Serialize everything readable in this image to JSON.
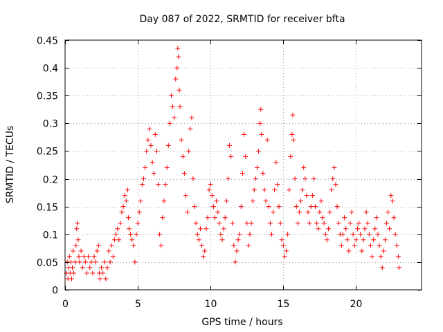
{
  "chart_data": {
    "type": "scatter",
    "title": "Day 087 of 2022, SRMTID for receiver bfta",
    "xlabel": "GPS time / hours",
    "ylabel": "SRMTID / TECUs",
    "xlim": [
      0,
      24.5
    ],
    "ylim": [
      0,
      0.45
    ],
    "xticks": [
      0,
      5,
      10,
      15,
      20
    ],
    "xtick_labels": [
      "0",
      "5",
      "10",
      "15",
      "20"
    ],
    "yticks": [
      0,
      0.05,
      0.1,
      0.15,
      0.2,
      0.25,
      0.3,
      0.35,
      0.4,
      0.45
    ],
    "ytick_labels": [
      "0",
      "0.05",
      "0.1",
      "0.15",
      "0.2",
      "0.25",
      "0.3",
      "0.35",
      "0.4",
      "0.45"
    ],
    "grid": true,
    "marker": "+",
    "color": "#ff0000",
    "series": [
      {
        "name": "SRMTID",
        "points": [
          [
            0.1,
            0.03
          ],
          [
            0.15,
            0.05
          ],
          [
            0.2,
            0.02
          ],
          [
            0.25,
            0.04
          ],
          [
            0.3,
            0.06
          ],
          [
            0.35,
            0.03
          ],
          [
            0.4,
            0.05
          ],
          [
            0.45,
            0.02
          ],
          [
            0.5,
            0.04
          ],
          [
            0.55,
            0.07
          ],
          [
            0.6,
            0.03
          ],
          [
            0.7,
            0.05
          ],
          [
            0.75,
            0.08
          ],
          [
            0.8,
            0.11
          ],
          [
            0.85,
            0.12
          ],
          [
            0.9,
            0.09
          ],
          [
            0.95,
            0.06
          ],
          [
            1.0,
            0.05
          ],
          [
            1.1,
            0.07
          ],
          [
            1.2,
            0.04
          ],
          [
            1.3,
            0.06
          ],
          [
            1.4,
            0.05
          ],
          [
            1.5,
            0.03
          ],
          [
            1.6,
            0.06
          ],
          [
            1.7,
            0.04
          ],
          [
            1.8,
            0.05
          ],
          [
            1.9,
            0.03
          ],
          [
            2.0,
            0.06
          ],
          [
            2.1,
            0.05
          ],
          [
            2.2,
            0.07
          ],
          [
            2.3,
            0.08
          ],
          [
            2.35,
            0.03
          ],
          [
            2.4,
            0.02
          ],
          [
            2.5,
            0.04
          ],
          [
            2.6,
            0.03
          ],
          [
            2.7,
            0.05
          ],
          [
            2.8,
            0.02
          ],
          [
            2.9,
            0.04
          ],
          [
            3.0,
            0.07
          ],
          [
            3.1,
            0.05
          ],
          [
            3.2,
            0.08
          ],
          [
            3.3,
            0.06
          ],
          [
            3.4,
            0.09
          ],
          [
            3.5,
            0.1
          ],
          [
            3.6,
            0.11
          ],
          [
            3.7,
            0.09
          ],
          [
            3.8,
            0.12
          ],
          [
            3.9,
            0.14
          ],
          [
            4.0,
            0.15
          ],
          [
            4.1,
            0.17
          ],
          [
            4.2,
            0.16
          ],
          [
            4.3,
            0.18
          ],
          [
            4.35,
            0.13
          ],
          [
            4.4,
            0.11
          ],
          [
            4.5,
            0.1
          ],
          [
            4.6,
            0.09
          ],
          [
            4.7,
            0.08
          ],
          [
            4.8,
            0.05
          ],
          [
            4.9,
            0.1
          ],
          [
            5.0,
            0.12
          ],
          [
            5.1,
            0.14
          ],
          [
            5.2,
            0.16
          ],
          [
            5.3,
            0.19
          ],
          [
            5.4,
            0.2
          ],
          [
            5.5,
            0.22
          ],
          [
            5.6,
            0.25
          ],
          [
            5.7,
            0.27
          ],
          [
            5.8,
            0.29
          ],
          [
            5.9,
            0.26
          ],
          [
            6.0,
            0.23
          ],
          [
            6.1,
            0.21
          ],
          [
            6.2,
            0.28
          ],
          [
            6.3,
            0.25
          ],
          [
            6.4,
            0.19
          ],
          [
            6.5,
            0.1
          ],
          [
            6.6,
            0.08
          ],
          [
            6.7,
            0.13
          ],
          [
            6.8,
            0.16
          ],
          [
            6.9,
            0.19
          ],
          [
            7.0,
            0.22
          ],
          [
            7.1,
            0.26
          ],
          [
            7.2,
            0.3
          ],
          [
            7.3,
            0.35
          ],
          [
            7.4,
            0.33
          ],
          [
            7.5,
            0.31
          ],
          [
            7.6,
            0.38
          ],
          [
            7.7,
            0.4
          ],
          [
            7.75,
            0.435
          ],
          [
            7.8,
            0.42
          ],
          [
            7.85,
            0.36
          ],
          [
            7.9,
            0.33
          ],
          [
            8.0,
            0.27
          ],
          [
            8.1,
            0.24
          ],
          [
            8.2,
            0.21
          ],
          [
            8.3,
            0.17
          ],
          [
            8.4,
            0.14
          ],
          [
            8.5,
            0.25
          ],
          [
            8.6,
            0.29
          ],
          [
            8.7,
            0.31
          ],
          [
            8.8,
            0.2
          ],
          [
            8.9,
            0.15
          ],
          [
            9.0,
            0.12
          ],
          [
            9.1,
            0.1
          ],
          [
            9.2,
            0.09
          ],
          [
            9.3,
            0.11
          ],
          [
            9.4,
            0.08
          ],
          [
            9.5,
            0.06
          ],
          [
            9.6,
            0.07
          ],
          [
            9.7,
            0.11
          ],
          [
            9.8,
            0.13
          ],
          [
            9.9,
            0.18
          ],
          [
            10.0,
            0.19
          ],
          [
            10.1,
            0.17
          ],
          [
            10.2,
            0.15
          ],
          [
            10.3,
            0.13
          ],
          [
            10.4,
            0.16
          ],
          [
            10.5,
            0.14
          ],
          [
            10.6,
            0.12
          ],
          [
            10.7,
            0.1
          ],
          [
            10.8,
            0.09
          ],
          [
            10.9,
            0.11
          ],
          [
            11.0,
            0.13
          ],
          [
            11.1,
            0.16
          ],
          [
            11.2,
            0.2
          ],
          [
            11.3,
            0.26
          ],
          [
            11.4,
            0.24
          ],
          [
            11.5,
            0.12
          ],
          [
            11.6,
            0.08
          ],
          [
            11.7,
            0.05
          ],
          [
            11.8,
            0.07
          ],
          [
            11.9,
            0.09
          ],
          [
            12.0,
            0.1
          ],
          [
            12.1,
            0.15
          ],
          [
            12.2,
            0.21
          ],
          [
            12.3,
            0.28
          ],
          [
            12.4,
            0.24
          ],
          [
            12.5,
            0.12
          ],
          [
            12.6,
            0.08
          ],
          [
            12.7,
            0.1
          ],
          [
            12.8,
            0.12
          ],
          [
            12.9,
            0.16
          ],
          [
            13.0,
            0.18
          ],
          [
            13.1,
            0.2
          ],
          [
            13.2,
            0.22
          ],
          [
            13.3,
            0.25
          ],
          [
            13.4,
            0.3
          ],
          [
            13.45,
            0.325
          ],
          [
            13.5,
            0.28
          ],
          [
            13.6,
            0.21
          ],
          [
            13.7,
            0.18
          ],
          [
            13.8,
            0.16
          ],
          [
            13.9,
            0.27
          ],
          [
            14.0,
            0.15
          ],
          [
            14.1,
            0.12
          ],
          [
            14.2,
            0.1
          ],
          [
            14.3,
            0.14
          ],
          [
            14.4,
            0.18
          ],
          [
            14.5,
            0.23
          ],
          [
            14.6,
            0.19
          ],
          [
            14.7,
            0.15
          ],
          [
            14.8,
            0.12
          ],
          [
            14.9,
            0.09
          ],
          [
            15.0,
            0.08
          ],
          [
            15.1,
            0.06
          ],
          [
            15.2,
            0.07
          ],
          [
            15.3,
            0.1
          ],
          [
            15.4,
            0.18
          ],
          [
            15.5,
            0.24
          ],
          [
            15.6,
            0.28
          ],
          [
            15.65,
            0.315
          ],
          [
            15.7,
            0.27
          ],
          [
            15.8,
            0.2
          ],
          [
            15.9,
            0.15
          ],
          [
            16.0,
            0.12
          ],
          [
            16.1,
            0.14
          ],
          [
            16.2,
            0.16
          ],
          [
            16.3,
            0.18
          ],
          [
            16.4,
            0.22
          ],
          [
            16.5,
            0.2
          ],
          [
            16.6,
            0.17
          ],
          [
            16.7,
            0.14
          ],
          [
            16.8,
            0.12
          ],
          [
            16.9,
            0.15
          ],
          [
            17.0,
            0.17
          ],
          [
            17.1,
            0.2
          ],
          [
            17.2,
            0.15
          ],
          [
            17.3,
            0.12
          ],
          [
            17.4,
            0.11
          ],
          [
            17.5,
            0.14
          ],
          [
            17.6,
            0.16
          ],
          [
            17.7,
            0.13
          ],
          [
            17.8,
            0.12
          ],
          [
            17.9,
            0.1
          ],
          [
            18.0,
            0.09
          ],
          [
            18.1,
            0.11
          ],
          [
            18.2,
            0.14
          ],
          [
            18.3,
            0.18
          ],
          [
            18.4,
            0.2
          ],
          [
            18.5,
            0.22
          ],
          [
            18.6,
            0.19
          ],
          [
            18.7,
            0.15
          ],
          [
            18.8,
            0.12
          ],
          [
            18.9,
            0.1
          ],
          [
            19.0,
            0.08
          ],
          [
            19.1,
            0.1
          ],
          [
            19.2,
            0.13
          ],
          [
            19.3,
            0.11
          ],
          [
            19.4,
            0.09
          ],
          [
            19.5,
            0.07
          ],
          [
            19.6,
            0.12
          ],
          [
            19.7,
            0.14
          ],
          [
            19.8,
            0.1
          ],
          [
            19.9,
            0.08
          ],
          [
            20.0,
            0.09
          ],
          [
            20.1,
            0.11
          ],
          [
            20.2,
            0.12
          ],
          [
            20.3,
            0.1
          ],
          [
            20.4,
            0.07
          ],
          [
            20.5,
            0.09
          ],
          [
            20.6,
            0.11
          ],
          [
            20.7,
            0.14
          ],
          [
            20.8,
            0.12
          ],
          [
            20.9,
            0.1
          ],
          [
            21.0,
            0.08
          ],
          [
            21.1,
            0.06
          ],
          [
            21.2,
            0.09
          ],
          [
            21.3,
            0.11
          ],
          [
            21.4,
            0.13
          ],
          [
            21.5,
            0.1
          ],
          [
            21.6,
            0.08
          ],
          [
            21.7,
            0.06
          ],
          [
            21.8,
            0.04
          ],
          [
            21.9,
            0.07
          ],
          [
            22.0,
            0.09
          ],
          [
            22.1,
            0.12
          ],
          [
            22.2,
            0.14
          ],
          [
            22.3,
            0.11
          ],
          [
            22.4,
            0.17
          ],
          [
            22.5,
            0.16
          ],
          [
            22.6,
            0.13
          ],
          [
            22.7,
            0.1
          ],
          [
            22.8,
            0.08
          ],
          [
            22.9,
            0.06
          ],
          [
            22.95,
            0.04
          ]
        ]
      }
    ]
  }
}
